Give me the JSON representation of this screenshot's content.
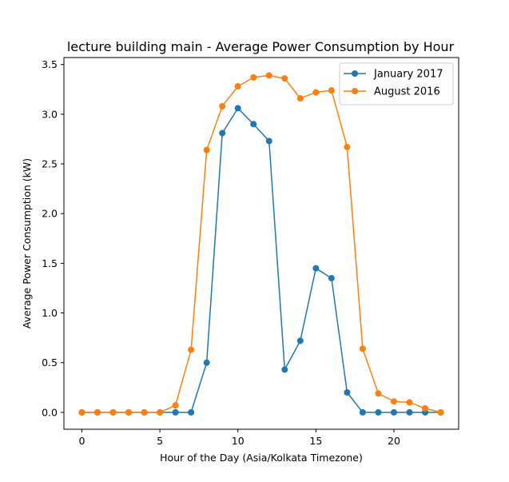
{
  "chart_data": {
    "type": "line",
    "title": "lecture building main - Average Power Consumption by Hour",
    "xlabel": "Hour of the Day (Asia/Kolkata Timezone)",
    "ylabel": "Average Power Consumption (kW)",
    "x": [
      0,
      1,
      2,
      3,
      4,
      5,
      6,
      7,
      8,
      9,
      10,
      11,
      12,
      13,
      14,
      15,
      16,
      17,
      18,
      19,
      20,
      21,
      22,
      23
    ],
    "xlim": [
      -1.15,
      24.15
    ],
    "ylim": [
      -0.17,
      3.57
    ],
    "xticks": [
      0,
      5,
      10,
      15,
      20
    ],
    "xtick_labels": [
      "0",
      "5",
      "10",
      "15",
      "20"
    ],
    "yticks": [
      0.0,
      0.5,
      1.0,
      1.5,
      2.0,
      2.5,
      3.0,
      3.5
    ],
    "ytick_labels": [
      "0.0",
      "0.5",
      "1.0",
      "1.5",
      "2.0",
      "2.5",
      "3.0",
      "3.5"
    ],
    "grid": false,
    "legend_position": "top-right",
    "series": [
      {
        "name": "January 2017",
        "color": "#1f77b4",
        "marker": "circle",
        "values": [
          0,
          0,
          0,
          0,
          0,
          0,
          0,
          0,
          0.5,
          2.81,
          3.06,
          2.9,
          2.73,
          0.43,
          0.72,
          1.45,
          1.35,
          0.2,
          0,
          0,
          0,
          0,
          0,
          0
        ]
      },
      {
        "name": "August 2016",
        "color": "#ff7f0e",
        "marker": "circle",
        "values": [
          0,
          0,
          0,
          0,
          0,
          0,
          0.07,
          0.63,
          2.64,
          3.08,
          3.28,
          3.37,
          3.39,
          3.36,
          3.16,
          3.22,
          3.24,
          2.67,
          0.64,
          0.19,
          0.11,
          0.1,
          0.04,
          0
        ]
      }
    ]
  }
}
